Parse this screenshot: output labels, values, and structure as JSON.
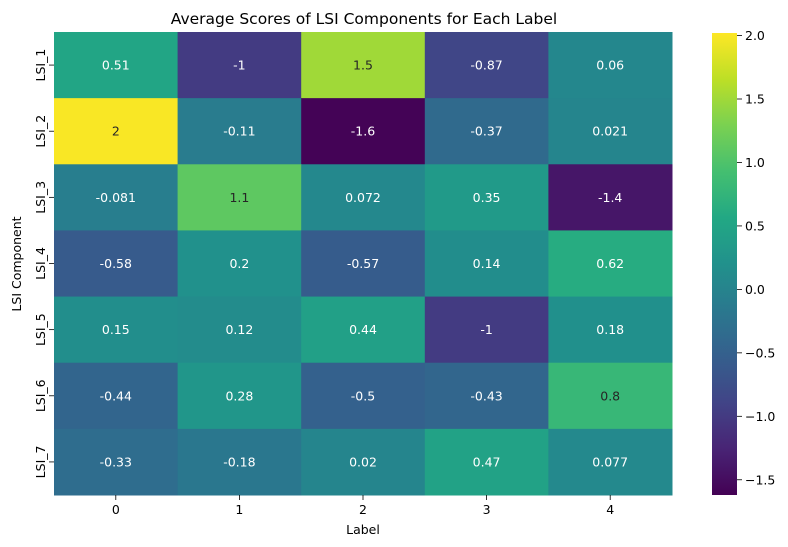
{
  "chart_data": {
    "type": "heatmap",
    "title": "Average Scores of LSI Components for Each Label",
    "xlabel": "Label",
    "ylabel": "LSI Component",
    "x_categories": [
      "0",
      "1",
      "2",
      "3",
      "4"
    ],
    "y_categories": [
      "LSI_1",
      "LSI_2",
      "LSI_3",
      "LSI_4",
      "LSI_5",
      "LSI_6",
      "LSI_7"
    ],
    "values": [
      [
        0.51,
        -1.0,
        1.5,
        -0.87,
        0.06
      ],
      [
        2.0,
        -0.11,
        -1.6,
        -0.37,
        0.021
      ],
      [
        -0.081,
        1.1,
        0.072,
        0.35,
        -1.4
      ],
      [
        -0.58,
        0.2,
        -0.57,
        0.14,
        0.62
      ],
      [
        0.15,
        0.12,
        0.44,
        -1.0,
        0.18
      ],
      [
        -0.44,
        0.28,
        -0.5,
        -0.43,
        0.8
      ],
      [
        -0.33,
        -0.18,
        0.02,
        0.47,
        0.077
      ]
    ],
    "cell_labels": [
      [
        "0.51",
        "-1",
        "1.5",
        "-0.87",
        "0.06"
      ],
      [
        "2",
        "-0.11",
        "-1.6",
        "-0.37",
        "0.021"
      ],
      [
        "-0.081",
        "1.1",
        "0.072",
        "0.35",
        "-1.4"
      ],
      [
        "-0.58",
        "0.2",
        "-0.57",
        "0.14",
        "0.62"
      ],
      [
        "0.15",
        "0.12",
        "0.44",
        "-1",
        "0.18"
      ],
      [
        "-0.44",
        "0.28",
        "-0.5",
        "-0.43",
        "0.8"
      ],
      [
        "-0.33",
        "-0.18",
        "0.02",
        "0.47",
        "0.077"
      ]
    ],
    "colormap": "viridis",
    "colorbar": {
      "vmin": -1.62,
      "vmax": 2.02,
      "ticks": [
        -1.5,
        -1.0,
        -0.5,
        0.0,
        0.5,
        1.0,
        1.5,
        2.0
      ],
      "tick_labels": [
        "−1.5",
        "−1.0",
        "−0.5",
        "0.0",
        "0.5",
        "1.0",
        "1.5",
        "2.0"
      ]
    }
  }
}
